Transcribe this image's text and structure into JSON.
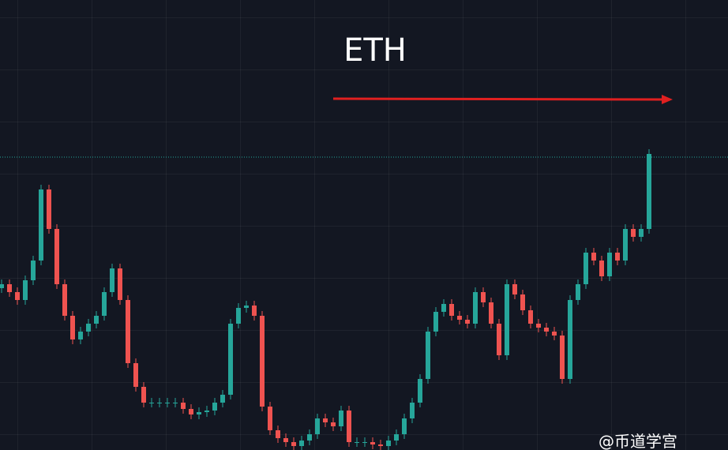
{
  "chart_data": {
    "type": "candlestick",
    "title": "ETH",
    "watermark": "@币道学宫",
    "up_color": "#26a69a",
    "down_color": "#ef5350",
    "ylim": [
      0,
      570
    ],
    "price_line": 371,
    "open": [
      205,
      210,
      200,
      190,
      215,
      240,
      330,
      280,
      210,
      170,
      140,
      150,
      160,
      170,
      200,
      230,
      190,
      110,
      80,
      60,
      60,
      60,
      60,
      60,
      52,
      45,
      48,
      50,
      60,
      70,
      160,
      180,
      183,
      170,
      55,
      25,
      15,
      10,
      5,
      12,
      20,
      40,
      35,
      30,
      50,
      10,
      10,
      10,
      7,
      5,
      12,
      20,
      40,
      60,
      90,
      150,
      175,
      185,
      170,
      165,
      160,
      200,
      187,
      160,
      120,
      210,
      197,
      177,
      160,
      155,
      150,
      145,
      90,
      190,
      210,
      250,
      240,
      220,
      250,
      240,
      280,
      270,
      280
    ],
    "high": [
      216,
      216,
      206,
      221,
      246,
      336,
      336,
      286,
      216,
      176,
      156,
      166,
      176,
      206,
      236,
      236,
      196,
      116,
      86,
      66,
      66,
      66,
      66,
      66,
      58,
      54,
      56,
      66,
      76,
      166,
      186,
      189,
      189,
      176,
      61,
      31,
      21,
      16,
      18,
      26,
      46,
      46,
      41,
      56,
      56,
      16,
      16,
      16,
      13,
      18,
      26,
      46,
      66,
      96,
      156,
      181,
      191,
      191,
      176,
      171,
      206,
      206,
      193,
      166,
      216,
      216,
      203,
      183,
      166,
      161,
      156,
      151,
      196,
      216,
      256,
      256,
      246,
      256,
      256,
      286,
      286,
      286,
      381
    ],
    "low": [
      199,
      194,
      184,
      184,
      209,
      234,
      274,
      204,
      164,
      134,
      134,
      144,
      154,
      164,
      194,
      184,
      104,
      74,
      54,
      54,
      54,
      54,
      54,
      46,
      39,
      39,
      42,
      44,
      54,
      64,
      154,
      174,
      164,
      49,
      19,
      9,
      4,
      -1,
      -1,
      6,
      14,
      29,
      24,
      24,
      4,
      4,
      4,
      1,
      -1,
      -1,
      6,
      14,
      34,
      54,
      84,
      144,
      169,
      164,
      159,
      154,
      154,
      181,
      154,
      114,
      114,
      191,
      171,
      154,
      149,
      144,
      139,
      84,
      84,
      184,
      204,
      234,
      214,
      214,
      234,
      234,
      264,
      264,
      274
    ],
    "close": [
      210,
      200,
      190,
      215,
      240,
      330,
      280,
      210,
      170,
      140,
      150,
      160,
      170,
      200,
      230,
      190,
      110,
      80,
      60,
      60,
      60,
      60,
      60,
      52,
      45,
      48,
      50,
      60,
      70,
      160,
      180,
      183,
      170,
      55,
      25,
      15,
      10,
      5,
      12,
      20,
      40,
      35,
      30,
      50,
      10,
      10,
      10,
      7,
      5,
      12,
      20,
      40,
      60,
      90,
      150,
      175,
      185,
      170,
      165,
      160,
      200,
      187,
      160,
      120,
      210,
      197,
      177,
      160,
      155,
      150,
      145,
      90,
      190,
      210,
      250,
      240,
      220,
      250,
      240,
      280,
      270,
      280,
      375
    ]
  }
}
